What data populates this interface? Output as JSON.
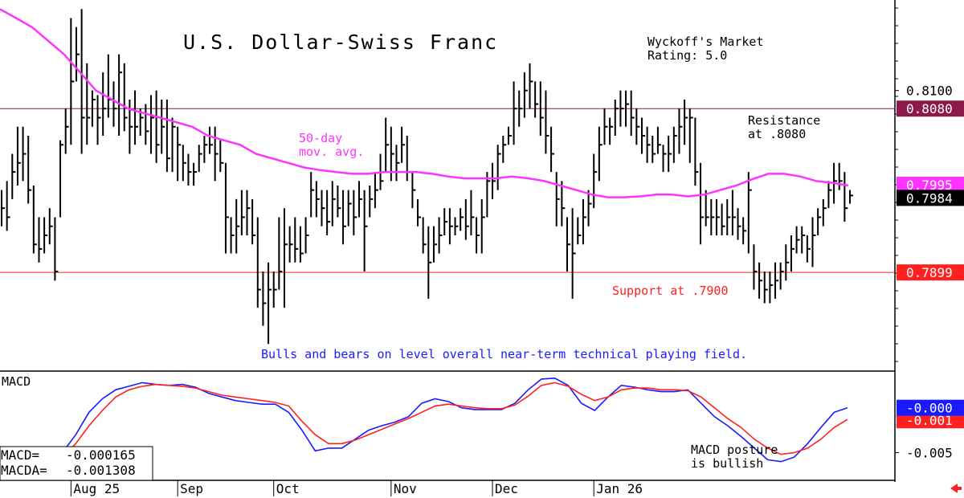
{
  "chart_data": [
    {
      "type": "ohlc",
      "title": "U.S. Dollar-Swiss Franc",
      "rating": "Wyckoff's Market\nRating: 5.0",
      "ylim": [
        0.779,
        0.82
      ],
      "y_tick_labels": [
        {
          "value": 0.81,
          "label": "0.8100"
        }
      ],
      "price_tags": [
        {
          "value": 0.808,
          "label": "0.8080",
          "color": "#8b1a4a"
        },
        {
          "value": 0.7995,
          "label": "0.7995",
          "color": "#ff33ff"
        },
        {
          "value": 0.7984,
          "label": "0.7984",
          "color": "#000000"
        },
        {
          "value": 0.7899,
          "label": "0.7899",
          "color": "#ff2020"
        }
      ],
      "resistance": {
        "value": 0.808,
        "label": "Resistance\nat .8080",
        "color": "#8b1a4a"
      },
      "support": {
        "value": 0.7899,
        "label": "Support at .7900",
        "color": "#ff2020"
      },
      "ma_label": "50-day\nmov. avg.",
      "ma_color": "#ff33ff",
      "comment": "Bulls and bears on level overall near-term technical playing field.",
      "bars": [
        {
          "h": 0.799,
          "l": 0.795,
          "c": 0.797
        },
        {
          "h": 0.8,
          "l": 0.7945,
          "c": 0.796
        },
        {
          "h": 0.803,
          "l": 0.798,
          "c": 0.801
        },
        {
          "h": 0.806,
          "l": 0.7995,
          "c": 0.802
        },
        {
          "h": 0.806,
          "l": 0.8,
          "c": 0.803
        },
        {
          "h": 0.805,
          "l": 0.7975,
          "c": 0.799
        },
        {
          "h": 0.7995,
          "l": 0.792,
          "c": 0.793
        },
        {
          "h": 0.796,
          "l": 0.791,
          "c": 0.7925
        },
        {
          "h": 0.796,
          "l": 0.792,
          "c": 0.794
        },
        {
          "h": 0.797,
          "l": 0.793,
          "c": 0.795
        },
        {
          "h": 0.796,
          "l": 0.789,
          "c": 0.79
        },
        {
          "h": 0.8045,
          "l": 0.796,
          "c": 0.804
        },
        {
          "h": 0.808,
          "l": 0.803,
          "c": 0.806
        },
        {
          "h": 0.818,
          "l": 0.804,
          "c": 0.811
        },
        {
          "h": 0.817,
          "l": 0.811,
          "c": 0.814
        },
        {
          "h": 0.819,
          "l": 0.803,
          "c": 0.807
        },
        {
          "h": 0.813,
          "l": 0.804,
          "c": 0.807
        },
        {
          "h": 0.81,
          "l": 0.806,
          "c": 0.809
        },
        {
          "h": 0.8095,
          "l": 0.804,
          "c": 0.807
        },
        {
          "h": 0.812,
          "l": 0.805,
          "c": 0.808
        },
        {
          "h": 0.814,
          "l": 0.807,
          "c": 0.809
        },
        {
          "h": 0.811,
          "l": 0.806,
          "c": 0.808
        },
        {
          "h": 0.814,
          "l": 0.805,
          "c": 0.812
        },
        {
          "h": 0.813,
          "l": 0.8055,
          "c": 0.807
        },
        {
          "h": 0.809,
          "l": 0.803,
          "c": 0.806
        },
        {
          "h": 0.81,
          "l": 0.804,
          "c": 0.806
        },
        {
          "h": 0.808,
          "l": 0.805,
          "c": 0.807
        },
        {
          "h": 0.8085,
          "l": 0.804,
          "c": 0.8055
        },
        {
          "h": 0.8095,
          "l": 0.803,
          "c": 0.807
        },
        {
          "h": 0.81,
          "l": 0.802,
          "c": 0.804
        },
        {
          "h": 0.809,
          "l": 0.803,
          "c": 0.806
        },
        {
          "h": 0.809,
          "l": 0.801,
          "c": 0.8025
        },
        {
          "h": 0.807,
          "l": 0.801,
          "c": 0.806
        },
        {
          "h": 0.806,
          "l": 0.8,
          "c": 0.804
        },
        {
          "h": 0.804,
          "l": 0.8,
          "c": 0.802
        },
        {
          "h": 0.803,
          "l": 0.7995,
          "c": 0.801
        },
        {
          "h": 0.802,
          "l": 0.7995,
          "c": 0.801
        },
        {
          "h": 0.804,
          "l": 0.801,
          "c": 0.803
        },
        {
          "h": 0.805,
          "l": 0.802,
          "c": 0.804
        },
        {
          "h": 0.806,
          "l": 0.803,
          "c": 0.804
        },
        {
          "h": 0.806,
          "l": 0.8,
          "c": 0.803
        },
        {
          "h": 0.8045,
          "l": 0.801,
          "c": 0.802
        },
        {
          "h": 0.802,
          "l": 0.792,
          "c": 0.796
        },
        {
          "h": 0.796,
          "l": 0.792,
          "c": 0.794
        },
        {
          "h": 0.798,
          "l": 0.792,
          "c": 0.795
        },
        {
          "h": 0.799,
          "l": 0.794,
          "c": 0.796
        },
        {
          "h": 0.799,
          "l": 0.794,
          "c": 0.797
        },
        {
          "h": 0.798,
          "l": 0.793,
          "c": 0.794
        },
        {
          "h": 0.796,
          "l": 0.786,
          "c": 0.788
        },
        {
          "h": 0.79,
          "l": 0.784,
          "c": 0.7865
        },
        {
          "h": 0.791,
          "l": 0.782,
          "c": 0.788
        },
        {
          "h": 0.79,
          "l": 0.786,
          "c": 0.788
        },
        {
          "h": 0.796,
          "l": 0.788,
          "c": 0.79
        },
        {
          "h": 0.797,
          "l": 0.786,
          "c": 0.793
        },
        {
          "h": 0.795,
          "l": 0.791,
          "c": 0.793
        },
        {
          "h": 0.796,
          "l": 0.791,
          "c": 0.7925
        },
        {
          "h": 0.795,
          "l": 0.791,
          "c": 0.792
        },
        {
          "h": 0.796,
          "l": 0.792,
          "c": 0.794
        },
        {
          "h": 0.801,
          "l": 0.796,
          "c": 0.799
        },
        {
          "h": 0.8,
          "l": 0.796,
          "c": 0.798
        },
        {
          "h": 0.799,
          "l": 0.795,
          "c": 0.797
        },
        {
          "h": 0.799,
          "l": 0.794,
          "c": 0.7955
        },
        {
          "h": 0.8,
          "l": 0.795,
          "c": 0.798
        },
        {
          "h": 0.7995,
          "l": 0.796,
          "c": 0.797
        },
        {
          "h": 0.799,
          "l": 0.793,
          "c": 0.795
        },
        {
          "h": 0.799,
          "l": 0.795,
          "c": 0.7975
        },
        {
          "h": 0.799,
          "l": 0.794,
          "c": 0.796
        },
        {
          "h": 0.8,
          "l": 0.796,
          "c": 0.798
        },
        {
          "h": 0.799,
          "l": 0.79,
          "c": 0.795
        },
        {
          "h": 0.7995,
          "l": 0.796,
          "c": 0.798
        },
        {
          "h": 0.801,
          "l": 0.797,
          "c": 0.799
        },
        {
          "h": 0.803,
          "l": 0.799,
          "c": 0.8
        },
        {
          "h": 0.807,
          "l": 0.801,
          "c": 0.804
        },
        {
          "h": 0.806,
          "l": 0.8,
          "c": 0.803
        },
        {
          "h": 0.804,
          "l": 0.8,
          "c": 0.802
        },
        {
          "h": 0.806,
          "l": 0.802,
          "c": 0.804
        },
        {
          "h": 0.805,
          "l": 0.8,
          "c": 0.801
        },
        {
          "h": 0.801,
          "l": 0.797,
          "c": 0.799
        },
        {
          "h": 0.798,
          "l": 0.795,
          "c": 0.796
        },
        {
          "h": 0.796,
          "l": 0.792,
          "c": 0.793
        },
        {
          "h": 0.795,
          "l": 0.787,
          "c": 0.791
        },
        {
          "h": 0.795,
          "l": 0.791,
          "c": 0.793
        },
        {
          "h": 0.796,
          "l": 0.792,
          "c": 0.794
        },
        {
          "h": 0.797,
          "l": 0.794,
          "c": 0.7955
        },
        {
          "h": 0.797,
          "l": 0.793,
          "c": 0.795
        },
        {
          "h": 0.796,
          "l": 0.794,
          "c": 0.795
        },
        {
          "h": 0.797,
          "l": 0.7945,
          "c": 0.796
        },
        {
          "h": 0.798,
          "l": 0.7935,
          "c": 0.795
        },
        {
          "h": 0.799,
          "l": 0.794,
          "c": 0.796
        },
        {
          "h": 0.796,
          "l": 0.792,
          "c": 0.794
        },
        {
          "h": 0.798,
          "l": 0.792,
          "c": 0.796
        },
        {
          "h": 0.801,
          "l": 0.796,
          "c": 0.8
        },
        {
          "h": 0.802,
          "l": 0.798,
          "c": 0.8
        },
        {
          "h": 0.804,
          "l": 0.799,
          "c": 0.803
        },
        {
          "h": 0.805,
          "l": 0.802,
          "c": 0.804
        },
        {
          "h": 0.806,
          "l": 0.804,
          "c": 0.805
        },
        {
          "h": 0.811,
          "l": 0.804,
          "c": 0.808
        },
        {
          "h": 0.81,
          "l": 0.806,
          "c": 0.808
        },
        {
          "h": 0.812,
          "l": 0.807,
          "c": 0.81
        },
        {
          "h": 0.813,
          "l": 0.808,
          "c": 0.811
        },
        {
          "h": 0.811,
          "l": 0.807,
          "c": 0.8085
        },
        {
          "h": 0.811,
          "l": 0.805,
          "c": 0.807
        },
        {
          "h": 0.81,
          "l": 0.803,
          "c": 0.805
        },
        {
          "h": 0.806,
          "l": 0.801,
          "c": 0.803
        },
        {
          "h": 0.801,
          "l": 0.795,
          "c": 0.798
        },
        {
          "h": 0.8,
          "l": 0.795,
          "c": 0.797
        },
        {
          "h": 0.796,
          "l": 0.79,
          "c": 0.793
        },
        {
          "h": 0.797,
          "l": 0.787,
          "c": 0.792
        },
        {
          "h": 0.796,
          "l": 0.793,
          "c": 0.794
        },
        {
          "h": 0.798,
          "l": 0.793,
          "c": 0.796
        },
        {
          "h": 0.799,
          "l": 0.795,
          "c": 0.7975
        },
        {
          "h": 0.803,
          "l": 0.797,
          "c": 0.801
        },
        {
          "h": 0.806,
          "l": 0.8,
          "c": 0.804
        },
        {
          "h": 0.808,
          "l": 0.804,
          "c": 0.806
        },
        {
          "h": 0.807,
          "l": 0.804,
          "c": 0.806
        },
        {
          "h": 0.809,
          "l": 0.805,
          "c": 0.808
        },
        {
          "h": 0.81,
          "l": 0.806,
          "c": 0.808
        },
        {
          "h": 0.81,
          "l": 0.806,
          "c": 0.8085
        },
        {
          "h": 0.81,
          "l": 0.805,
          "c": 0.807
        },
        {
          "h": 0.808,
          "l": 0.804,
          "c": 0.806
        },
        {
          "h": 0.807,
          "l": 0.803,
          "c": 0.805
        },
        {
          "h": 0.806,
          "l": 0.802,
          "c": 0.804
        },
        {
          "h": 0.805,
          "l": 0.802,
          "c": 0.803
        },
        {
          "h": 0.806,
          "l": 0.803,
          "c": 0.804
        },
        {
          "h": 0.804,
          "l": 0.801,
          "c": 0.803
        },
        {
          "h": 0.805,
          "l": 0.801,
          "c": 0.803
        },
        {
          "h": 0.806,
          "l": 0.802,
          "c": 0.805
        },
        {
          "h": 0.808,
          "l": 0.803,
          "c": 0.806
        },
        {
          "h": 0.809,
          "l": 0.804,
          "c": 0.807
        },
        {
          "h": 0.808,
          "l": 0.802,
          "c": 0.807
        },
        {
          "h": 0.807,
          "l": 0.7995,
          "c": 0.801
        },
        {
          "h": 0.802,
          "l": 0.793,
          "c": 0.796
        },
        {
          "h": 0.799,
          "l": 0.795,
          "c": 0.796
        },
        {
          "h": 0.798,
          "l": 0.794,
          "c": 0.796
        },
        {
          "h": 0.798,
          "l": 0.794,
          "c": 0.796
        },
        {
          "h": 0.7975,
          "l": 0.794,
          "c": 0.795
        },
        {
          "h": 0.798,
          "l": 0.794,
          "c": 0.796
        },
        {
          "h": 0.799,
          "l": 0.794,
          "c": 0.796
        },
        {
          "h": 0.797,
          "l": 0.7935,
          "c": 0.795
        },
        {
          "h": 0.796,
          "l": 0.793,
          "c": 0.7945
        },
        {
          "h": 0.801,
          "l": 0.792,
          "c": 0.799
        },
        {
          "h": 0.793,
          "l": 0.788,
          "c": 0.79
        },
        {
          "h": 0.791,
          "l": 0.787,
          "c": 0.789
        },
        {
          "h": 0.79,
          "l": 0.7865,
          "c": 0.788
        },
        {
          "h": 0.79,
          "l": 0.7865,
          "c": 0.7885
        },
        {
          "h": 0.791,
          "l": 0.787,
          "c": 0.789
        },
        {
          "h": 0.791,
          "l": 0.788,
          "c": 0.79
        },
        {
          "h": 0.793,
          "l": 0.789,
          "c": 0.791
        },
        {
          "h": 0.794,
          "l": 0.79,
          "c": 0.7925
        },
        {
          "h": 0.795,
          "l": 0.792,
          "c": 0.7935
        },
        {
          "h": 0.795,
          "l": 0.792,
          "c": 0.794
        },
        {
          "h": 0.794,
          "l": 0.791,
          "c": 0.7925
        },
        {
          "h": 0.796,
          "l": 0.7905,
          "c": 0.794
        },
        {
          "h": 0.797,
          "l": 0.794,
          "c": 0.796
        },
        {
          "h": 0.798,
          "l": 0.795,
          "c": 0.797
        },
        {
          "h": 0.8,
          "l": 0.797,
          "c": 0.799
        },
        {
          "h": 0.802,
          "l": 0.7975,
          "c": 0.8
        },
        {
          "h": 0.802,
          "l": 0.799,
          "c": 0.8
        },
        {
          "h": 0.801,
          "l": 0.7955,
          "c": 0.797
        },
        {
          "h": 0.799,
          "l": 0.7975,
          "c": 0.7984
        }
      ],
      "ma": [
        0.819,
        0.818,
        0.817,
        0.8155,
        0.814,
        0.812,
        0.81,
        0.809,
        0.808,
        0.8075,
        0.807,
        0.8065,
        0.806,
        0.805,
        0.8045,
        0.804,
        0.803,
        0.8025,
        0.802,
        0.8015,
        0.8012,
        0.801,
        0.8008,
        0.8008,
        0.801,
        0.801,
        0.801,
        0.8008,
        0.8005,
        0.8003,
        0.8003,
        0.8003,
        0.8005,
        0.8003,
        0.8,
        0.7995,
        0.799,
        0.7985,
        0.7982,
        0.7982,
        0.7983,
        0.7985,
        0.7985,
        0.7983,
        0.7985,
        0.799,
        0.7995,
        0.8002,
        0.8008,
        0.8008,
        0.8005,
        0.8,
        0.7998,
        0.7995
      ],
      "x_labels": [
        {
          "label": "Aug 25",
          "bar": 13
        },
        {
          "label": "Sep",
          "bar": 33
        },
        {
          "label": "Oct",
          "bar": 51
        },
        {
          "label": "Nov",
          "bar": 73
        },
        {
          "label": "Dec",
          "bar": 92
        },
        {
          "label": "Jan 26",
          "bar": 111
        }
      ]
    },
    {
      "type": "line",
      "title": "MACD",
      "ylim": [
        -0.008,
        0.004
      ],
      "y_tick_labels": [
        {
          "value": -0.005,
          "label": "-0.005"
        }
      ],
      "price_tags": [
        {
          "value": 0.0,
          "label": "-0.000",
          "color": "#1a1aff"
        },
        {
          "value": -0.0013,
          "label": "-0.001",
          "color": "#ff2020"
        }
      ],
      "note": "MACD posture\nis bullish",
      "readout": [
        {
          "label": "MACD=",
          "value": "-0.000165"
        },
        {
          "label": "MACDA=",
          "value": "-0.001308"
        }
      ],
      "series": [
        {
          "color": "#1a1aff",
          "values": [
            -0.0065,
            -0.0058,
            -0.0057,
            -0.005,
            -0.003,
            -0.0005,
            0.001,
            0.002,
            0.0024,
            0.0028,
            0.0026,
            0.0025,
            0.0026,
            0.0023,
            0.0016,
            0.0012,
            0.0008,
            0.0006,
            0.0004,
            0.0004,
            -0.0005,
            -0.0025,
            -0.0048,
            -0.0045,
            -0.0045,
            -0.0035,
            -0.0025,
            -0.002,
            -0.0016,
            -0.001,
            0.0005,
            0.001,
            0.0007,
            0.0,
            -0.0002,
            -0.0002,
            -0.0002,
            0.0005,
            0.002,
            0.0032,
            0.0033,
            0.0025,
            0.0005,
            -0.0003,
            0.0012,
            0.0025,
            0.0023,
            0.002,
            0.0018,
            0.0018,
            0.002,
            0.0005,
            -0.001,
            -0.002,
            -0.0032,
            -0.0045,
            -0.0058,
            -0.006,
            -0.0055,
            -0.004,
            -0.0022,
            -0.0005,
            0.0
          ]
        },
        {
          "color": "#ff2020",
          "values": [
            -0.0068,
            -0.0066,
            -0.0063,
            -0.0055,
            -0.004,
            -0.002,
            -0.0003,
            0.0012,
            0.002,
            0.0024,
            0.0026,
            0.0025,
            0.0024,
            0.0022,
            0.0018,
            0.0014,
            0.0012,
            0.001,
            0.0008,
            0.0006,
            0.0002,
            -0.0015,
            -0.003,
            -0.004,
            -0.004,
            -0.0036,
            -0.003,
            -0.0024,
            -0.0018,
            -0.0012,
            -0.0005,
            0.0002,
            0.0004,
            0.0002,
            0.0,
            -0.0001,
            -0.0001,
            0.0003,
            0.0013,
            0.0025,
            0.0028,
            0.0024,
            0.0015,
            0.0008,
            0.0012,
            0.002,
            0.0022,
            0.0022,
            0.002,
            0.002,
            0.0019,
            0.0012,
            0.0,
            -0.0012,
            -0.0022,
            -0.0035,
            -0.0045,
            -0.0052,
            -0.005,
            -0.0045,
            -0.0035,
            -0.0022,
            -0.0013
          ]
        }
      ]
    }
  ]
}
